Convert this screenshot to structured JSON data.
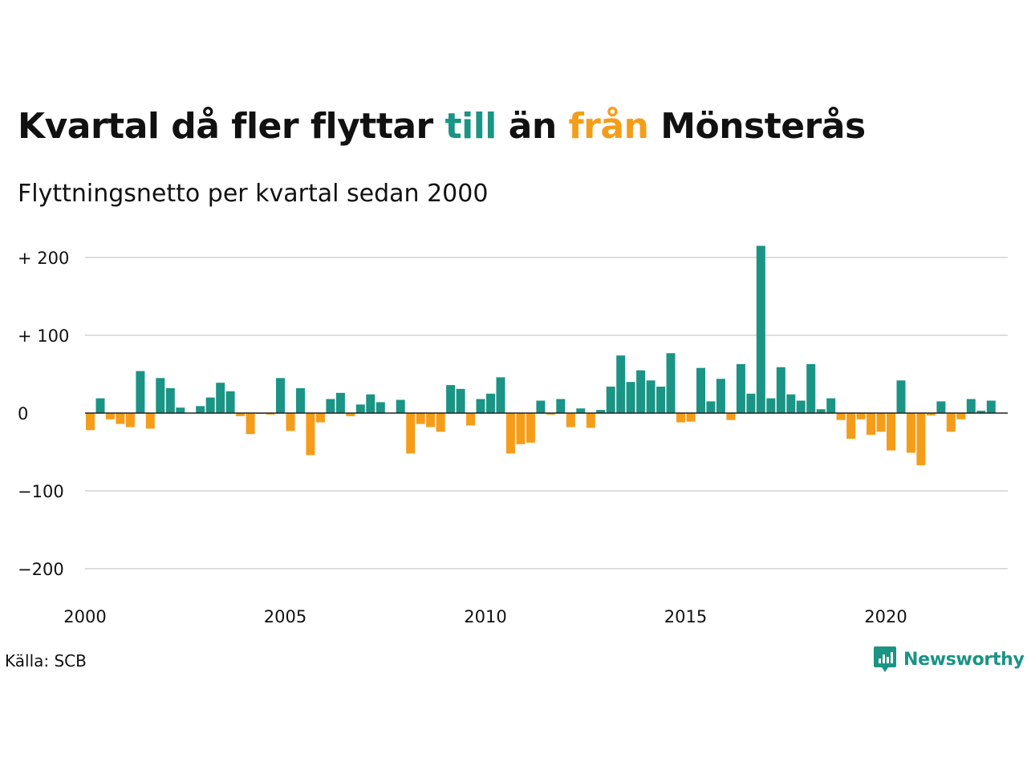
{
  "title": {
    "part1": "Kvartal då fler flyttar ",
    "part2": "till",
    "part3": " än ",
    "part4": "från",
    "part5": " Mönsterås"
  },
  "subtitle": "Flyttningsnetto per kvartal sedan 2000",
  "source": "Källa: SCB",
  "logo": {
    "text": "Newsworthy",
    "icon": "newsworthy-logo-icon"
  },
  "colors": {
    "positive": "#1a9485",
    "negative": "#f59d19",
    "grid": "#dddddd",
    "axis": "#222222",
    "logo": "#1a9485"
  },
  "chart_data": {
    "type": "bar",
    "x_start": "2000 Q1",
    "x_ticks": [
      2000,
      2005,
      2010,
      2015,
      2020
    ],
    "y_ticks": [
      {
        "value": 200,
        "label": "+ 200"
      },
      {
        "value": 100,
        "label": "+ 100"
      },
      {
        "value": 0,
        "label": "0"
      },
      {
        "value": -100,
        "label": "−100"
      },
      {
        "value": -200,
        "label": "−200"
      }
    ],
    "ylim": [
      -220,
      220
    ],
    "grid": true,
    "values": [
      -22,
      19,
      -8,
      -14,
      -18,
      54,
      -20,
      45,
      32,
      7,
      0,
      9,
      20,
      39,
      28,
      -4,
      -27,
      -1,
      -2,
      45,
      -23,
      32,
      -54,
      -12,
      18,
      26,
      -4,
      11,
      24,
      14,
      0,
      17,
      -52,
      -14,
      -18,
      -24,
      36,
      31,
      -16,
      18,
      25,
      46,
      -52,
      -40,
      -38,
      16,
      -2,
      18,
      -18,
      6,
      -19,
      4,
      34,
      74,
      40,
      55,
      42,
      34,
      77,
      -12,
      -11,
      58,
      15,
      44,
      -9,
      63,
      25,
      215,
      19,
      59,
      24,
      16,
      63,
      5,
      19,
      -9,
      -33,
      -8,
      -28,
      -24,
      -48,
      42,
      -51,
      -67,
      -3,
      15,
      -24,
      -8,
      18,
      3,
      16
    ]
  }
}
